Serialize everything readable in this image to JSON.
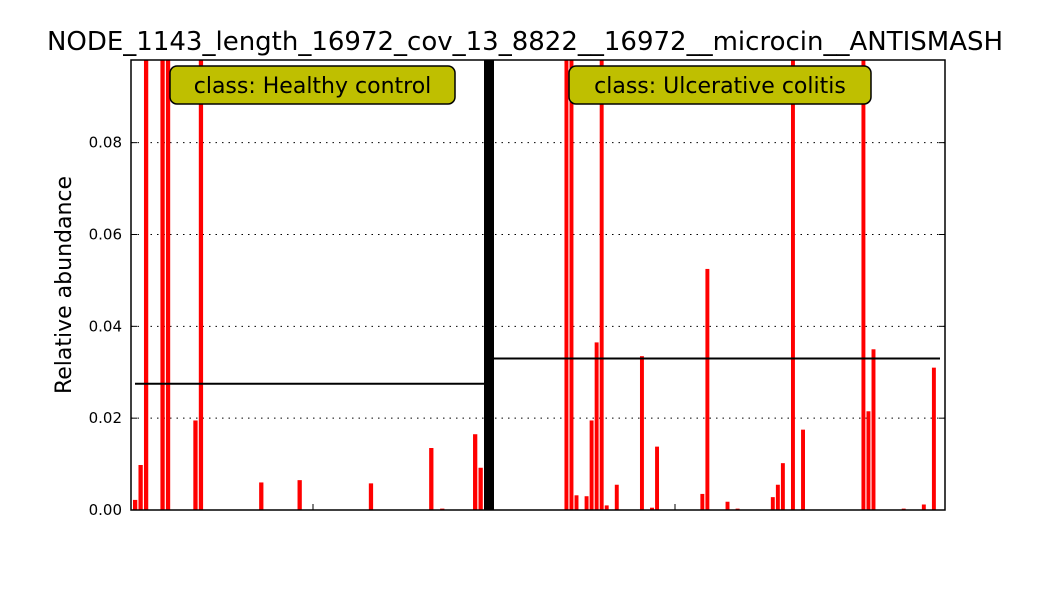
{
  "chart_data": {
    "type": "bar",
    "title": "NODE_1143_length_16972_cov_13_8822__16972__microcin__ANTISMASH",
    "ylabel": "Relative abundance",
    "xlabel": "",
    "ylim": [
      0,
      0.098
    ],
    "yticks": [
      "0.00",
      "0.02",
      "0.04",
      "0.06",
      "0.08"
    ],
    "ytick_values": [
      0,
      0.02,
      0.04,
      0.06,
      0.08
    ],
    "grid": "horizontal-dotted",
    "bar_color": "#ff0000",
    "panels": [
      {
        "label": "class: Healthy control",
        "mean": 0.0275,
        "values": [
          0.0022,
          0.0098,
          0.098,
          0,
          0,
          0.098,
          0.098,
          0,
          0,
          0,
          0,
          0.0195,
          0.098,
          0,
          0,
          0,
          0,
          0,
          0,
          0,
          0,
          0,
          0,
          0.006,
          0,
          0,
          0,
          0,
          0,
          0,
          0.0065,
          0,
          0,
          0,
          0,
          0,
          0,
          0,
          0,
          0,
          0,
          0,
          0,
          0.0058,
          0,
          0,
          0,
          0,
          0,
          0,
          0,
          0,
          0,
          0,
          0.0135,
          0,
          0.0003,
          0,
          0,
          0,
          0,
          0,
          0.0165,
          0.0092
        ]
      },
      {
        "label": "class: Ulcerative colitis",
        "mean": 0.033,
        "values": [
          0,
          0,
          0,
          0,
          0,
          0,
          0,
          0,
          0,
          0,
          0,
          0,
          0,
          0,
          0.098,
          0.098,
          0.0032,
          0,
          0.003,
          0.0195,
          0.0365,
          0.098,
          0.001,
          0,
          0.0055,
          0,
          0,
          0,
          0,
          0.0335,
          0,
          0.0005,
          0.0138,
          0,
          0,
          0,
          0,
          0,
          0,
          0,
          0,
          0.0035,
          0.0525,
          0,
          0,
          0,
          0.0018,
          0,
          0.0003,
          0,
          0,
          0,
          0,
          0,
          0,
          0.0028,
          0.0055,
          0.0102,
          0,
          0.098,
          0,
          0.0175,
          0,
          0,
          0,
          0,
          0,
          0,
          0,
          0,
          0,
          0,
          0,
          0.098,
          0.0215,
          0.035,
          0,
          0,
          0,
          0,
          0,
          0.0003,
          0,
          0,
          0,
          0.0012,
          0,
          0.031,
          0
        ]
      }
    ]
  }
}
